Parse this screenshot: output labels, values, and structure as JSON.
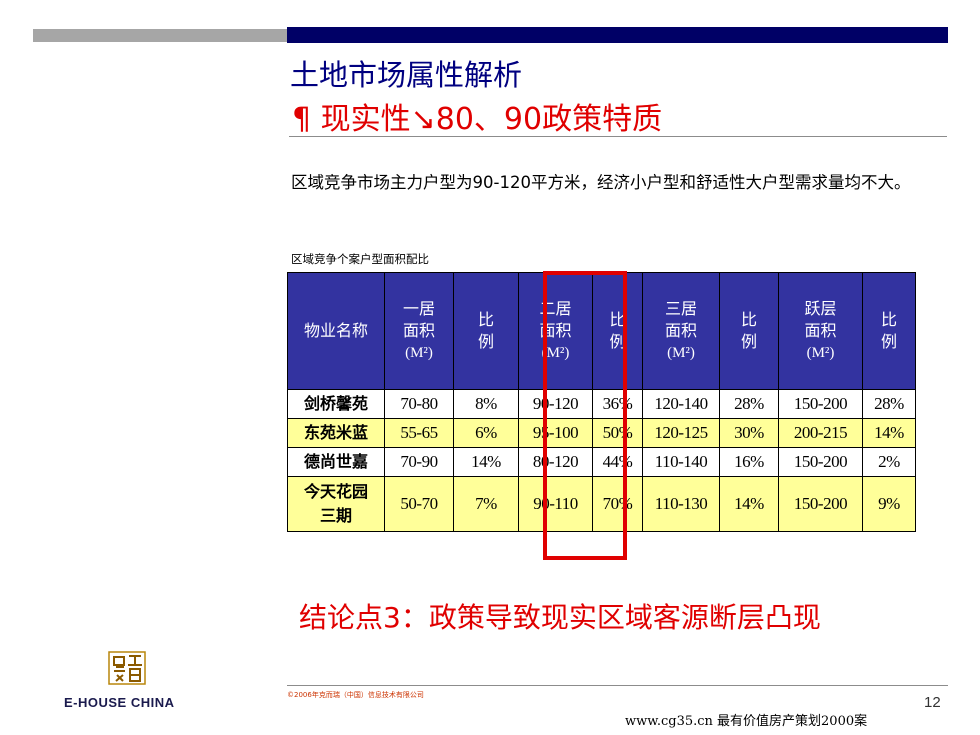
{
  "slide": {
    "title": "土地市场属性解析",
    "subtitle": "¶ 现实性↘80、90政策特质",
    "summary": "区域竞争市场主力户型为90-120平方米，经济小户型和舒适性大户型需求量均不大。",
    "table_caption": "区域竞争个案户型面积配比",
    "conclusion": "结论点3：政策导致现实区域客源断层凸现",
    "page_number": "12"
  },
  "table": {
    "headers": [
      {
        "lines": [
          "物业名称"
        ]
      },
      {
        "lines": [
          "一居",
          "面积",
          "(M²)"
        ]
      },
      {
        "lines": [
          "比",
          "例"
        ]
      },
      {
        "lines": [
          "二居",
          "面积",
          "(M²)"
        ]
      },
      {
        "lines": [
          "比",
          "例"
        ]
      },
      {
        "lines": [
          "三居",
          "面积",
          "(M²)"
        ]
      },
      {
        "lines": [
          "比",
          "例"
        ]
      },
      {
        "lines": [
          "跃层",
          "面积",
          "(M²)"
        ]
      },
      {
        "lines": [
          "比",
          "例"
        ]
      }
    ],
    "rows": [
      {
        "name_lines": [
          "剑桥馨苑"
        ],
        "cells": [
          "70-80",
          "8%",
          "90-120",
          "36%",
          "120-140",
          "28%",
          "150-200",
          "28%"
        ],
        "fill": "white"
      },
      {
        "name_lines": [
          "东苑米蓝"
        ],
        "cells": [
          "55-65",
          "6%",
          "95-100",
          "50%",
          "120-125",
          "30%",
          "200-215",
          "14%"
        ],
        "fill": "yellow"
      },
      {
        "name_lines": [
          "德尚世嘉"
        ],
        "cells": [
          "70-90",
          "14%",
          "80-120",
          "44%",
          "110-140",
          "16%",
          "150-200",
          "2%"
        ],
        "fill": "white"
      },
      {
        "name_lines": [
          "今天花园",
          "三期"
        ],
        "cells": [
          "50-70",
          "7%",
          "90-110",
          "70%",
          "110-130",
          "14%",
          "150-200",
          "9%"
        ],
        "fill": "yellow"
      }
    ],
    "highlight_column": "二居面积 (M²)"
  },
  "branding": {
    "logo_text": "E-HOUSE CHINA",
    "copyright": "©2006年克而瑞（中国）信息技术有限公司",
    "watermark": "www.cg35.cn 最有价值房产策划2000案"
  },
  "colors": {
    "title_navy": "#000080",
    "accent_red": "#e00000",
    "header_blue": "#3333a0",
    "row_yellow": "#ffff99",
    "top_bar_navy": "#000066",
    "top_bar_gray": "#a6a6a6"
  },
  "icons": [
    "e-house-logo-icon"
  ]
}
